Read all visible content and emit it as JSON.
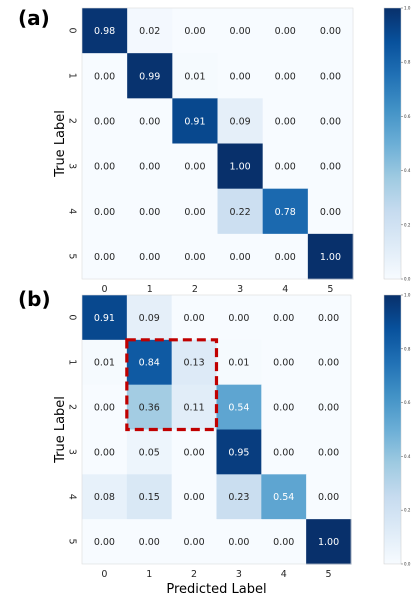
{
  "chart_data": [
    {
      "type": "heatmap",
      "panel_label": "(a)",
      "x_categories": [
        "0",
        "1",
        "2",
        "3",
        "4",
        "5"
      ],
      "y_categories": [
        "0",
        "1",
        "2",
        "3",
        "4",
        "5"
      ],
      "xlabel": "",
      "ylabel": "True Label",
      "values": [
        [
          0.98,
          0.02,
          0.0,
          0.0,
          0.0,
          0.0
        ],
        [
          0.0,
          0.99,
          0.01,
          0.0,
          0.0,
          0.0
        ],
        [
          0.0,
          0.0,
          0.91,
          0.09,
          0.0,
          0.0
        ],
        [
          0.0,
          0.0,
          0.0,
          1.0,
          0.0,
          0.0
        ],
        [
          0.0,
          0.0,
          0.0,
          0.22,
          0.78,
          0.0
        ],
        [
          0.0,
          0.0,
          0.0,
          0.0,
          0.0,
          1.0
        ]
      ],
      "value_labels": [
        [
          "0.98",
          "0.02",
          "0.00",
          "0.00",
          "0.00",
          "0.00"
        ],
        [
          "0.00",
          "0.99",
          "0.01",
          "0.00",
          "0.00",
          "0.00"
        ],
        [
          "0.00",
          "0.00",
          "0.91",
          "0.09",
          "0.00",
          "0.00"
        ],
        [
          "0.00",
          "0.00",
          "0.00",
          "1.00",
          "0.00",
          "0.00"
        ],
        [
          "0.00",
          "0.00",
          "0.00",
          "0.22",
          "0.78",
          "0.00"
        ],
        [
          "0.00",
          "0.00",
          "0.00",
          "0.00",
          "0.00",
          "1.00"
        ]
      ],
      "colorbar": {
        "range": [
          0,
          1
        ],
        "ticks": [
          "0.0",
          "0.2",
          "0.4",
          "0.6",
          "0.8",
          "1.0"
        ]
      },
      "colormap": "Blues",
      "grid": false
    },
    {
      "type": "heatmap",
      "panel_label": "(b)",
      "x_categories": [
        "0",
        "1",
        "2",
        "3",
        "4",
        "5"
      ],
      "y_categories": [
        "0",
        "1",
        "2",
        "3",
        "4",
        "5"
      ],
      "xlabel": "Predicted Label",
      "ylabel": "True Label",
      "values": [
        [
          0.91,
          0.09,
          0.0,
          0.0,
          0.0,
          0.0
        ],
        [
          0.01,
          0.84,
          0.13,
          0.01,
          0.0,
          0.0
        ],
        [
          0.0,
          0.36,
          0.11,
          0.54,
          0.0,
          0.0
        ],
        [
          0.0,
          0.05,
          0.0,
          0.95,
          0.0,
          0.0
        ],
        [
          0.08,
          0.15,
          0.0,
          0.23,
          0.54,
          0.0
        ],
        [
          0.0,
          0.0,
          0.0,
          0.0,
          0.0,
          1.0
        ]
      ],
      "value_labels": [
        [
          "0.91",
          "0.09",
          "0.00",
          "0.00",
          "0.00",
          "0.00"
        ],
        [
          "0.01",
          "0.84",
          "0.13",
          "0.01",
          "0.00",
          "0.00"
        ],
        [
          "0.00",
          "0.36",
          "0.11",
          "0.54",
          "0.00",
          "0.00"
        ],
        [
          "0.00",
          "0.05",
          "0.00",
          "0.95",
          "0.00",
          "0.00"
        ],
        [
          "0.08",
          "0.15",
          "0.00",
          "0.23",
          "0.54",
          "0.00"
        ],
        [
          "0.00",
          "0.00",
          "0.00",
          "0.00",
          "0.00",
          "1.00"
        ]
      ],
      "colorbar": {
        "range": [
          0,
          1
        ],
        "ticks": [
          "0.0",
          "0.2",
          "0.4",
          "0.6",
          "0.8",
          "1.0"
        ]
      },
      "colormap": "Blues",
      "grid": false,
      "highlight": {
        "rows": [
          1,
          2
        ],
        "cols": [
          1,
          2
        ],
        "color": "#c00000",
        "style": "dashed"
      }
    }
  ]
}
